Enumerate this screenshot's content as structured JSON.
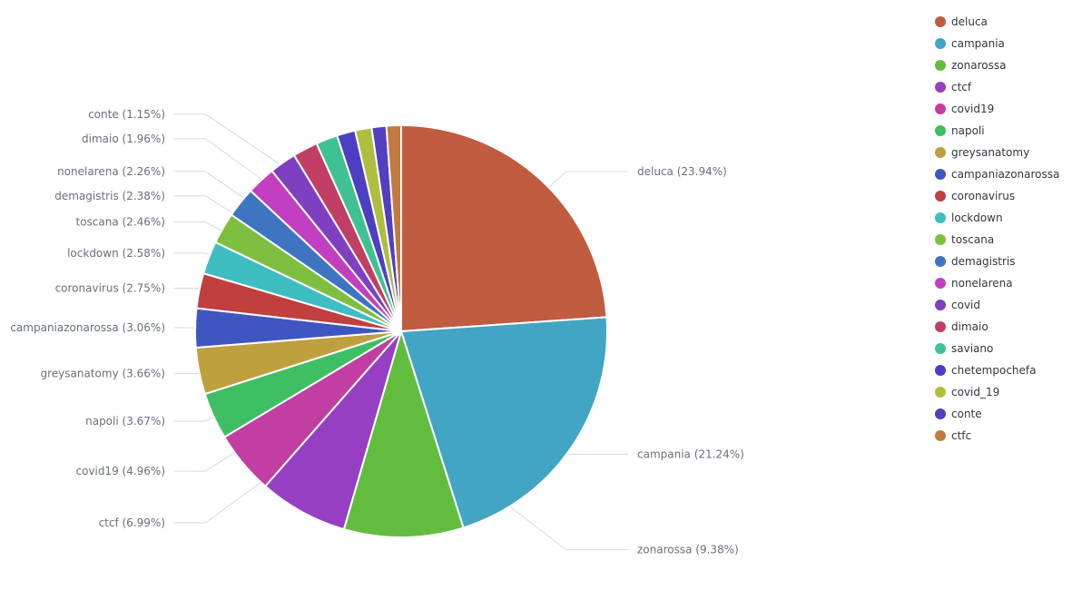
{
  "chart_data": {
    "type": "pie",
    "title": "",
    "legend_position": "right",
    "slices": [
      {
        "label": "deluca",
        "value": 23.94,
        "display": "deluca (23.94%)",
        "color": "#c05c3f"
      },
      {
        "label": "campania",
        "value": 21.24,
        "display": "campania (21.24%)",
        "color": "#41a5c3"
      },
      {
        "label": "zonarossa",
        "value": 9.38,
        "display": "zonarossa (9.38%)",
        "color": "#62bd3f"
      },
      {
        "label": "ctcf",
        "value": 6.99,
        "display": "ctcf (6.99%)",
        "color": "#973fc3"
      },
      {
        "label": "covid19",
        "value": 4.96,
        "display": "covid19 (4.96%)",
        "color": "#c13ea3"
      },
      {
        "label": "napoli",
        "value": 3.67,
        "display": "napoli (3.67%)",
        "color": "#3fbf64"
      },
      {
        "label": "greysanatomy",
        "value": 3.66,
        "display": "greysanatomy (3.66%)",
        "color": "#bfa03f"
      },
      {
        "label": "campaniazonarossa",
        "value": 3.06,
        "display": "campaniazonarossa (3.06%)",
        "color": "#3f56c0"
      },
      {
        "label": "coronavirus",
        "value": 2.75,
        "display": "coronavirus (2.75%)",
        "color": "#c13f3f"
      },
      {
        "label": "lockdown",
        "value": 2.58,
        "display": "lockdown (2.58%)",
        "color": "#3fbec2"
      },
      {
        "label": "toscana",
        "value": 2.46,
        "display": "toscana (2.46%)",
        "color": "#7fbf3f"
      },
      {
        "label": "demagistris",
        "value": 2.38,
        "display": "demagistris (2.38%)",
        "color": "#3f75c0"
      },
      {
        "label": "nonelarena",
        "value": 2.26,
        "display": "nonelarena (2.26%)",
        "color": "#c23fc2"
      },
      {
        "label": "covid",
        "value": 2.1,
        "display": "",
        "color": "#7e3fc1"
      },
      {
        "label": "dimaio",
        "value": 1.96,
        "display": "dimaio (1.96%)",
        "color": "#c13f64"
      },
      {
        "label": "saviano",
        "value": 1.7,
        "display": "",
        "color": "#3fc193"
      },
      {
        "label": "chetempochefa",
        "value": 1.45,
        "display": "",
        "color": "#4d3fc1"
      },
      {
        "label": "covid_19",
        "value": 1.3,
        "display": "",
        "color": "#aebf3f"
      },
      {
        "label": "conte",
        "value": 1.15,
        "display": "conte (1.15%)",
        "color": "#543fc1"
      },
      {
        "label": "ctfc",
        "value": 1.15,
        "display": "",
        "color": "#c17a3f"
      }
    ]
  }
}
